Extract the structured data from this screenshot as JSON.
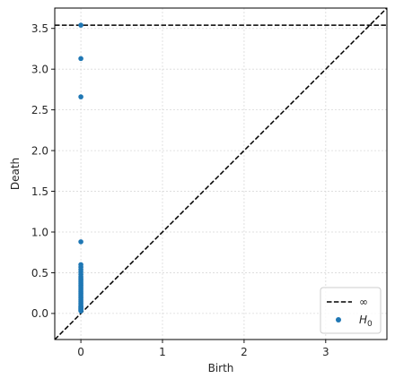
{
  "chart_data": {
    "type": "scatter",
    "title": "",
    "xlabel": "Birth",
    "ylabel": "Death",
    "xlim": [
      -0.32,
      3.75
    ],
    "ylim": [
      -0.32,
      3.75
    ],
    "x_ticks": [
      0,
      1,
      2,
      3
    ],
    "x_tick_labels": [
      "0",
      "1",
      "2",
      "3"
    ],
    "y_ticks": [
      0.0,
      0.5,
      1.0,
      1.5,
      2.0,
      2.5,
      3.0,
      3.5
    ],
    "y_tick_labels": [
      "0.0",
      "0.5",
      "1.0",
      "1.5",
      "2.0",
      "2.5",
      "3.0",
      "3.5"
    ],
    "grid": true,
    "legend_position": "lower-right",
    "infinity_level": 3.54,
    "colors": {
      "points": "#1f77b4",
      "lines": "#000000",
      "grid": "#d9d9d9"
    },
    "series": [
      {
        "name": "H0",
        "kind": "points",
        "x": [
          0,
          0,
          0,
          0,
          0,
          0,
          0,
          0,
          0,
          0,
          0,
          0,
          0,
          0,
          0,
          0,
          0,
          0,
          0,
          0,
          0,
          0,
          0,
          0,
          0,
          0,
          0,
          0,
          0,
          0,
          0,
          0,
          0,
          0
        ],
        "y": [
          3.54,
          3.13,
          2.66,
          0.88,
          0.6,
          0.57,
          0.54,
          0.51,
          0.48,
          0.45,
          0.43,
          0.41,
          0.39,
          0.37,
          0.35,
          0.33,
          0.31,
          0.29,
          0.27,
          0.25,
          0.23,
          0.21,
          0.19,
          0.17,
          0.15,
          0.13,
          0.11,
          0.09,
          0.08,
          0.07,
          0.06,
          0.05,
          0.04,
          0.03
        ]
      }
    ],
    "legend": [
      {
        "label": "∞",
        "marker": "dashed-line"
      },
      {
        "label_main": "H",
        "label_sub": "0",
        "marker": "dot"
      }
    ]
  }
}
